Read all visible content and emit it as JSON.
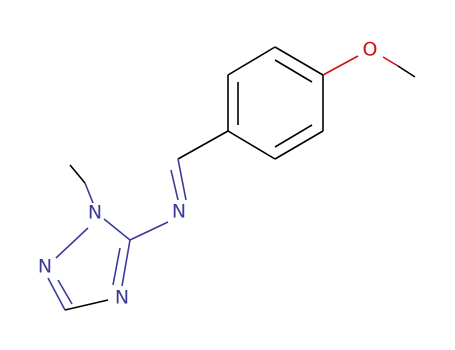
{
  "atoms": [
    {
      "label": "O"
    },
    {
      "label": "N"
    },
    {
      "label": "N"
    },
    {
      "label": "N"
    },
    {
      "label": "N"
    }
  ]
}
